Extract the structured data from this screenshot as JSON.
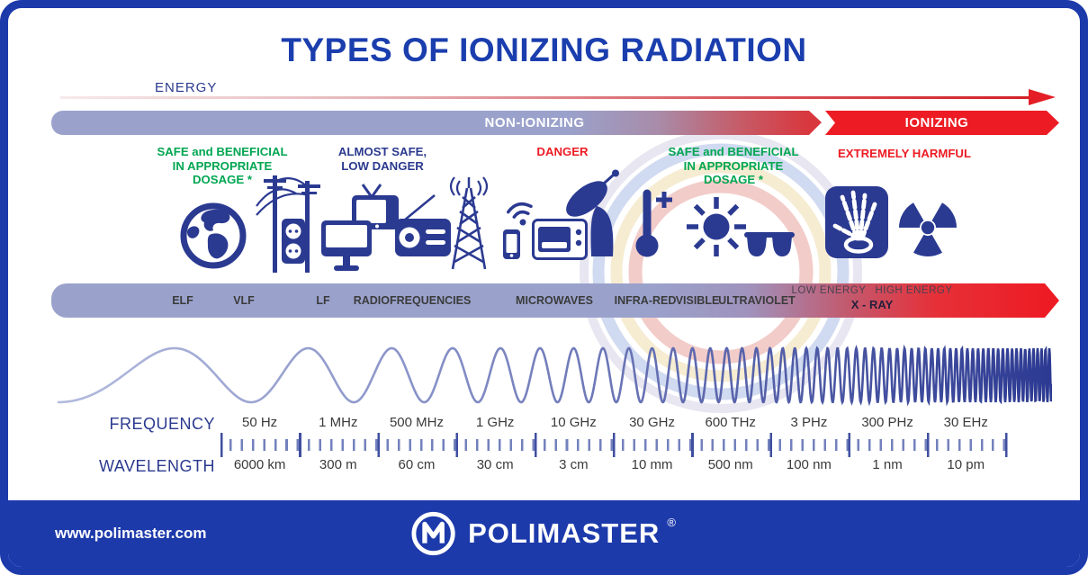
{
  "title": "TYPES OF IONIZING RADIATION",
  "energy_axis": {
    "label": "ENERGY"
  },
  "classification": {
    "non_ionizing": "NON-IONIZING",
    "ionizing": "IONIZING"
  },
  "safety": [
    {
      "zone": "elf-to-lf",
      "lines": [
        "SAFE and BENEFICIAL",
        "IN APPROPRIATE",
        "DOSAGE *"
      ],
      "color": "#00a651"
    },
    {
      "zone": "radiofrequencies",
      "lines": [
        "ALMOST SAFE,",
        "LOW DANGER"
      ],
      "color": "#2b3a8f"
    },
    {
      "zone": "microwaves",
      "lines": [
        "DANGER"
      ],
      "color": "#ed1c24"
    },
    {
      "zone": "visible",
      "lines": [
        "SAFE and BENEFICIAL",
        "IN APPROPRIATE",
        "DOSAGE *"
      ],
      "color": "#00a651"
    },
    {
      "zone": "xray",
      "lines": [
        "EXTREMELY HARMFUL"
      ],
      "color": "#ed1c24"
    }
  ],
  "icons": [
    "earth-globe",
    "power-lines-and-outlet",
    "tv-and-monitor",
    "radio",
    "transmission-tower",
    "wifi-and-phone",
    "microwave-oven",
    "satellite-dish",
    "thermometer",
    "sun",
    "sunglasses",
    "x-ray-hand",
    "radioactive-trefoil"
  ],
  "spectrum": {
    "bands": [
      "ELF",
      "VLF",
      "LF",
      "RADIOFREQUENCIES",
      "MICROWAVES",
      "INFRA-RED",
      "VISIBLE",
      "ULTRAVIOLET"
    ],
    "xray_low": "LOW ENERGY",
    "xray_high": "HIGH ENERGY",
    "xray": "X - RAY"
  },
  "scale": {
    "frequency_label": "FREQUENCY",
    "wavelength_label": "WAVELENGTH",
    "points": [
      {
        "frequency": "50 Hz",
        "wavelength": "6000 km"
      },
      {
        "frequency": "1 MHz",
        "wavelength": "300 m"
      },
      {
        "frequency": "500 MHz",
        "wavelength": "60 cm"
      },
      {
        "frequency": "1 GHz",
        "wavelength": "30 cm"
      },
      {
        "frequency": "10 GHz",
        "wavelength": "3 cm"
      },
      {
        "frequency": "30 GHz",
        "wavelength": "10 mm"
      },
      {
        "frequency": "600 THz",
        "wavelength": "500 nm"
      },
      {
        "frequency": "3 PHz",
        "wavelength": "100 nm"
      },
      {
        "frequency": "300 PHz",
        "wavelength": "1 nm"
      },
      {
        "frequency": "30 EHz",
        "wavelength": "10 pm"
      }
    ]
  },
  "footer": {
    "website": "www.polimaster.com",
    "brand": "POLIMASTER",
    "registered": "®"
  },
  "colors": {
    "brand_blue": "#1d3aab",
    "title_blue": "#1b3eae",
    "navy": "#2b3a91",
    "lavender": "#9aa2cc",
    "red": "#ed1c24",
    "green": "#00a651"
  }
}
